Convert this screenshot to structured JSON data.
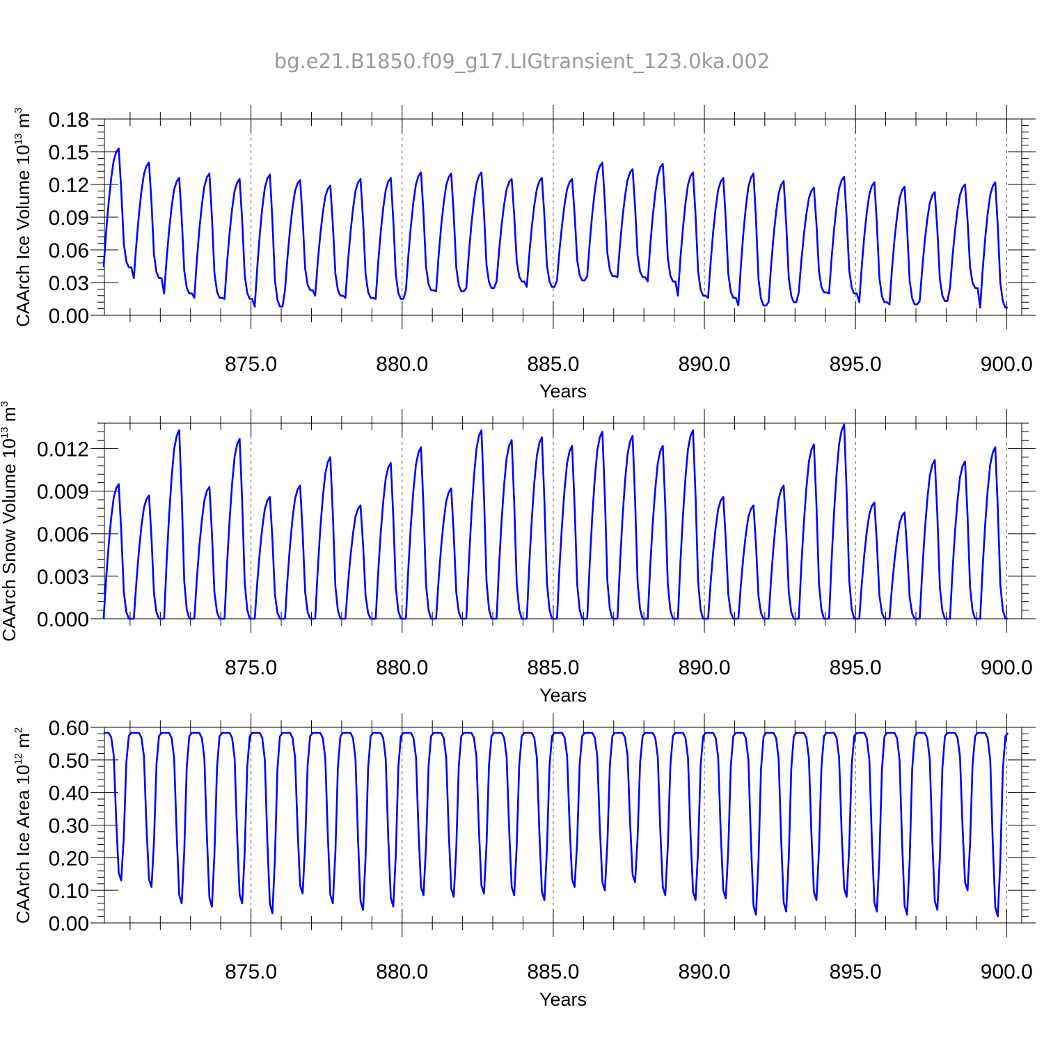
{
  "title": "bg.e21.B1850.f09_g17.LIGtransient_123.0ka.002",
  "colors": {
    "line": "#0000ff",
    "axis": "#000000",
    "title": "#9a9a9a",
    "grid": "#555555"
  },
  "chart_data": [
    {
      "type": "line",
      "title": "",
      "xlabel": "Years",
      "ylabel": {
        "text": "CAArch Ice Volume 10",
        "exp": "13",
        "unit": " m",
        "unit_exp": "3"
      },
      "xlim": [
        870.15,
        900.5
      ],
      "ylim": [
        0,
        0.18
      ],
      "yticks": [
        "0.00",
        "0.03",
        "0.06",
        "0.09",
        "0.12",
        "0.15",
        "0.18"
      ],
      "xticks": [
        "875.0",
        "880.0",
        "885.0",
        "890.0",
        "895.0",
        "900.0"
      ],
      "grid": "vertical dashed at major x ticks",
      "x_start": 870.125,
      "x_step": 0.0833333,
      "peaks": [
        0.153,
        0.14,
        0.126,
        0.13,
        0.125,
        0.129,
        0.124,
        0.119,
        0.125,
        0.126,
        0.131,
        0.13,
        0.131,
        0.125,
        0.126,
        0.125,
        0.14,
        0.134,
        0.139,
        0.131,
        0.126,
        0.13,
        0.123,
        0.117,
        0.127,
        0.122,
        0.118,
        0.113,
        0.12,
        0.122
      ],
      "troughs": [
        0.044,
        0.034,
        0.02,
        0.016,
        0.015,
        0.008,
        0.023,
        0.018,
        0.016,
        0.015,
        0.023,
        0.022,
        0.025,
        0.031,
        0.026,
        0.032,
        0.036,
        0.035,
        0.031,
        0.018,
        0.016,
        0.009,
        0.012,
        0.021,
        0.02,
        0.012,
        0.01,
        0.013,
        0.025,
        0.007
      ]
    },
    {
      "type": "line",
      "title": "",
      "xlabel": "Years",
      "ylabel": {
        "text": "CAArch Snow Volume 10",
        "exp": "13",
        "unit": " m",
        "unit_exp": "3"
      },
      "xlim": [
        870.15,
        900.5
      ],
      "ylim": [
        0,
        0.0138
      ],
      "yticks": [
        "0.000",
        "0.003",
        "0.006",
        "0.009",
        "0.012"
      ],
      "xticks": [
        "875.0",
        "880.0",
        "885.0",
        "890.0",
        "895.0",
        "900.0"
      ],
      "grid": "vertical dashed at major x ticks",
      "x_start": 870.125,
      "x_step": 0.0833333,
      "peaks": [
        0.0095,
        0.0087,
        0.0133,
        0.0093,
        0.0127,
        0.0086,
        0.0094,
        0.0114,
        0.008,
        0.011,
        0.0121,
        0.0092,
        0.0133,
        0.0126,
        0.0128,
        0.0122,
        0.0132,
        0.0129,
        0.0122,
        0.0133,
        0.0086,
        0.008,
        0.0094,
        0.0123,
        0.0137,
        0.0082,
        0.0075,
        0.0112,
        0.0111,
        0.0121
      ],
      "troughs": [
        0.0,
        0.0,
        0.0,
        0.0,
        0.0,
        0.0,
        0.0,
        0.0,
        0.0,
        0.0,
        0.0,
        0.0,
        0.0,
        0.0,
        0.0,
        0.0,
        0.0,
        0.0,
        0.0,
        0.0,
        0.0,
        0.0,
        0.0,
        0.0,
        0.0,
        0.0,
        0.0,
        0.0,
        0.0,
        0.0
      ]
    },
    {
      "type": "line",
      "title": "",
      "xlabel": "Years",
      "ylabel": {
        "text": "CAArch Ice Area 10",
        "exp": "12",
        "unit": " m",
        "unit_exp": "2"
      },
      "xlim": [
        870.15,
        900.5
      ],
      "ylim": [
        0,
        0.6
      ],
      "yticks": [
        "0.00",
        "0.10",
        "0.20",
        "0.30",
        "0.40",
        "0.50",
        "0.60"
      ],
      "xticks": [
        "875.0",
        "880.0",
        "885.0",
        "890.0",
        "895.0",
        "900.0"
      ],
      "grid": "vertical dashed at major x ticks",
      "x_start": 870.125,
      "x_step": 0.0833333,
      "peaks": [
        0.583,
        0.583,
        0.583,
        0.583,
        0.583,
        0.583,
        0.583,
        0.583,
        0.583,
        0.583,
        0.583,
        0.583,
        0.583,
        0.583,
        0.583,
        0.583,
        0.583,
        0.583,
        0.583,
        0.583,
        0.583,
        0.583,
        0.583,
        0.583,
        0.583,
        0.583,
        0.583,
        0.583,
        0.583,
        0.583
      ],
      "troughs": [
        0.13,
        0.11,
        0.06,
        0.05,
        0.06,
        0.03,
        0.09,
        0.06,
        0.04,
        0.05,
        0.085,
        0.08,
        0.09,
        0.085,
        0.07,
        0.11,
        0.1,
        0.125,
        0.085,
        0.07,
        0.075,
        0.025,
        0.035,
        0.07,
        0.08,
        0.035,
        0.025,
        0.04,
        0.1,
        0.02
      ]
    }
  ]
}
